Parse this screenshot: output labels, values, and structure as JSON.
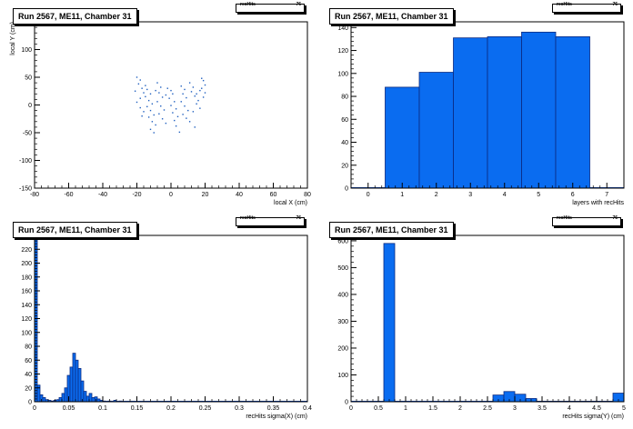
{
  "stats_label": "recHits",
  "stats_value": "76",
  "charts": [
    {
      "id": "p0",
      "title": "Run 2567, ME11, Chamber 31",
      "chart_data": {
        "type": "scatter",
        "title": "Run 2567, ME11, Chamber 31",
        "xlabel": "local X (cm)",
        "ylabel": "local Y (cm)",
        "xlim": [
          -80,
          80
        ],
        "ylim": [
          -150,
          150
        ],
        "xticks": [
          -80,
          -60,
          -40,
          -20,
          0,
          20,
          40,
          60,
          80
        ],
        "yticks": [
          -150,
          -100,
          -50,
          0,
          50,
          100,
          150
        ],
        "color": "#1f5fbf",
        "points": [
          [
            -20,
            50
          ],
          [
            -18,
            45
          ],
          [
            -19,
            38
          ],
          [
            -17,
            30
          ],
          [
            -21,
            25
          ],
          [
            -16,
            22
          ],
          [
            -14,
            28
          ],
          [
            -12,
            20
          ],
          [
            -15,
            15
          ],
          [
            -18,
            12
          ],
          [
            -13,
            8
          ],
          [
            -11,
            2
          ],
          [
            -14,
            -3
          ],
          [
            -12,
            -10
          ],
          [
            -10,
            -18
          ],
          [
            -13,
            -22
          ],
          [
            -11,
            -30
          ],
          [
            -9,
            -36
          ],
          [
            -12,
            -44
          ],
          [
            -10,
            -50
          ],
          [
            -8,
            40
          ],
          [
            -6,
            32
          ],
          [
            -7,
            22
          ],
          [
            -5,
            14
          ],
          [
            -8,
            6
          ],
          [
            -6,
            -2
          ],
          [
            -4,
            -9
          ],
          [
            -7,
            -16
          ],
          [
            -5,
            -25
          ],
          [
            -3,
            -33
          ],
          [
            -2,
            30
          ],
          [
            0,
            26
          ],
          [
            1,
            20
          ],
          [
            -1,
            12
          ],
          [
            2,
            6
          ],
          [
            0,
            -1
          ],
          [
            3,
            -7
          ],
          [
            1,
            -14
          ],
          [
            4,
            -21
          ],
          [
            2,
            -28
          ],
          [
            6,
            34
          ],
          [
            8,
            28
          ],
          [
            7,
            20
          ],
          [
            9,
            13
          ],
          [
            6,
            6
          ],
          [
            8,
            -2
          ],
          [
            10,
            -10
          ],
          [
            7,
            -17
          ],
          [
            9,
            -24
          ],
          [
            5,
            -49
          ],
          [
            11,
            40
          ],
          [
            13,
            32
          ],
          [
            12,
            24
          ],
          [
            14,
            16
          ],
          [
            16,
            8
          ],
          [
            15,
            2
          ],
          [
            17,
            -6
          ],
          [
            13,
            -12
          ],
          [
            15,
            20
          ],
          [
            17,
            26
          ],
          [
            18,
            48
          ],
          [
            19,
            44
          ],
          [
            20,
            36
          ],
          [
            18,
            30
          ],
          [
            20,
            22
          ],
          [
            19,
            14
          ],
          [
            -18,
            -5
          ],
          [
            -16,
            -12
          ],
          [
            -20,
            5
          ],
          [
            -17,
            -20
          ],
          [
            -15,
            35
          ],
          [
            -9,
            26
          ],
          [
            -3,
            18
          ],
          [
            3,
            -38
          ],
          [
            11,
            -30
          ],
          [
            14,
            -40
          ]
        ]
      }
    },
    {
      "id": "p1",
      "title": "Run 2567, ME11, Chamber 31",
      "chart_data": {
        "type": "bar",
        "title": "Run 2567, ME11, Chamber 31",
        "xlabel": "layers with recHits",
        "ylabel": "",
        "xlim": [
          -0.5,
          7.5
        ],
        "ylim": [
          0,
          145
        ],
        "xticks": [
          0,
          1,
          2,
          3,
          4,
          5,
          6,
          7
        ],
        "yticks": [
          0,
          20,
          40,
          60,
          80,
          100,
          120,
          140
        ],
        "bin_width": 1,
        "bin_centers": [
          1,
          2,
          3,
          4,
          5,
          6
        ],
        "values": [
          88,
          101,
          131,
          132,
          136,
          132
        ],
        "color": "#0a6cf0"
      }
    },
    {
      "id": "p2",
      "title": "Run 2567, ME11, Chamber 31",
      "chart_data": {
        "type": "bar",
        "title": "Run 2567, ME11, Chamber 31",
        "xlabel": "recHits sigma(X) (cm)",
        "ylabel": "",
        "xlim": [
          0,
          0.4
        ],
        "ylim": [
          0,
          240
        ],
        "xticks": [
          0,
          0.05,
          0.1,
          0.15,
          0.2,
          0.25,
          0.3,
          0.35,
          0.4
        ],
        "tick_labels": [
          "0",
          "0.05",
          "0.1",
          "0.15",
          "0.2",
          "0.25",
          "0.3",
          "0.35",
          "0.4"
        ],
        "yticks": [
          0,
          20,
          40,
          60,
          80,
          100,
          120,
          140,
          160,
          180,
          200,
          220,
          240
        ],
        "bin_width": 0.004,
        "bin_centers": [
          0.002,
          0.006,
          0.01,
          0.014,
          0.018,
          0.022,
          0.026,
          0.03,
          0.034,
          0.038,
          0.042,
          0.046,
          0.05,
          0.054,
          0.058,
          0.062,
          0.066,
          0.07,
          0.074,
          0.078,
          0.082,
          0.086,
          0.09,
          0.094,
          0.098,
          0.102,
          0.11,
          0.118,
          0.126
        ],
        "values": [
          235,
          24,
          10,
          6,
          3,
          2,
          1,
          2,
          3,
          6,
          12,
          20,
          38,
          50,
          70,
          60,
          48,
          30,
          15,
          8,
          12,
          6,
          7,
          4,
          2,
          1,
          1,
          2,
          1
        ],
        "color": "#0a6cf0"
      }
    },
    {
      "id": "p3",
      "title": "Run 2567, ME11, Chamber 31",
      "chart_data": {
        "type": "bar",
        "title": "Run 2567, ME11, Chamber 31",
        "xlabel": "recHits sigma(Y) (cm)",
        "ylabel": "",
        "xlim": [
          0,
          5
        ],
        "ylim": [
          0,
          620
        ],
        "xticks": [
          0,
          0.5,
          1,
          1.5,
          2,
          2.5,
          3,
          3.5,
          4,
          4.5,
          5
        ],
        "tick_labels": [
          "0",
          "0.5",
          "1",
          "1.5",
          "2",
          "2.5",
          "3",
          "3.5",
          "4",
          "4.5",
          "5"
        ],
        "yticks": [
          0,
          100,
          200,
          300,
          400,
          500,
          600
        ],
        "bin_width": 0.2,
        "bin_centers": [
          0.1,
          0.3,
          0.5,
          0.7,
          0.9,
          1.1,
          1.3,
          1.5,
          1.7,
          1.9,
          2.1,
          2.3,
          2.5,
          2.7,
          2.9,
          3.1,
          3.3,
          3.5,
          3.7,
          3.9,
          4.1,
          4.3,
          4.5,
          4.7,
          4.9
        ],
        "values": [
          0,
          0,
          0,
          590,
          0,
          0,
          0,
          0,
          0,
          0,
          0,
          0,
          0,
          25,
          38,
          28,
          12,
          2,
          2,
          2,
          2,
          2,
          2,
          2,
          32
        ],
        "color": "#0a6cf0"
      }
    }
  ]
}
